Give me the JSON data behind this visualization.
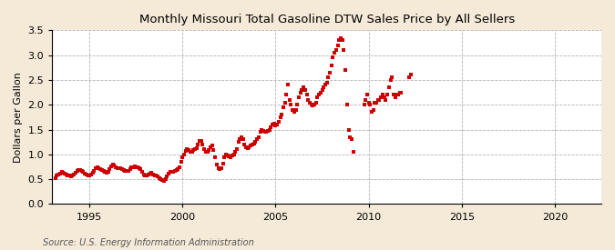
{
  "title": "Monthly Missouri Total Gasoline DTW Sales Price by All Sellers",
  "ylabel": "Dollars per Gallon",
  "source": "Source: U.S. Energy Information Administration",
  "fig_bg_color": "#f5ead8",
  "plot_bg_color": "#ffffff",
  "dot_color": "#cc0000",
  "xlim": [
    1993.0,
    2022.5
  ],
  "ylim": [
    0.0,
    3.5
  ],
  "yticks": [
    0.0,
    0.5,
    1.0,
    1.5,
    2.0,
    2.5,
    3.0,
    3.5
  ],
  "xticks": [
    1995,
    2000,
    2005,
    2010,
    2015,
    2020
  ],
  "data": [
    [
      1993.17,
      0.53
    ],
    [
      1993.25,
      0.57
    ],
    [
      1993.33,
      0.6
    ],
    [
      1993.42,
      0.62
    ],
    [
      1993.5,
      0.65
    ],
    [
      1993.58,
      0.63
    ],
    [
      1993.67,
      0.62
    ],
    [
      1993.75,
      0.6
    ],
    [
      1993.83,
      0.58
    ],
    [
      1993.92,
      0.57
    ],
    [
      1994.0,
      0.55
    ],
    [
      1994.08,
      0.57
    ],
    [
      1994.17,
      0.6
    ],
    [
      1994.25,
      0.63
    ],
    [
      1994.33,
      0.67
    ],
    [
      1994.42,
      0.68
    ],
    [
      1994.5,
      0.68
    ],
    [
      1994.58,
      0.67
    ],
    [
      1994.67,
      0.65
    ],
    [
      1994.75,
      0.62
    ],
    [
      1994.83,
      0.6
    ],
    [
      1994.92,
      0.58
    ],
    [
      1995.0,
      0.57
    ],
    [
      1995.08,
      0.6
    ],
    [
      1995.17,
      0.63
    ],
    [
      1995.25,
      0.67
    ],
    [
      1995.33,
      0.72
    ],
    [
      1995.42,
      0.74
    ],
    [
      1995.5,
      0.73
    ],
    [
      1995.58,
      0.71
    ],
    [
      1995.67,
      0.69
    ],
    [
      1995.75,
      0.67
    ],
    [
      1995.83,
      0.65
    ],
    [
      1995.92,
      0.63
    ],
    [
      1996.0,
      0.65
    ],
    [
      1996.08,
      0.7
    ],
    [
      1996.17,
      0.76
    ],
    [
      1996.25,
      0.8
    ],
    [
      1996.33,
      0.78
    ],
    [
      1996.42,
      0.75
    ],
    [
      1996.5,
      0.73
    ],
    [
      1996.58,
      0.73
    ],
    [
      1996.67,
      0.72
    ],
    [
      1996.75,
      0.7
    ],
    [
      1996.83,
      0.68
    ],
    [
      1996.92,
      0.67
    ],
    [
      1997.0,
      0.66
    ],
    [
      1997.08,
      0.67
    ],
    [
      1997.17,
      0.7
    ],
    [
      1997.25,
      0.74
    ],
    [
      1997.33,
      0.75
    ],
    [
      1997.42,
      0.76
    ],
    [
      1997.5,
      0.75
    ],
    [
      1997.58,
      0.74
    ],
    [
      1997.67,
      0.72
    ],
    [
      1997.75,
      0.7
    ],
    [
      1997.83,
      0.65
    ],
    [
      1997.92,
      0.6
    ],
    [
      1998.0,
      0.57
    ],
    [
      1998.08,
      0.57
    ],
    [
      1998.17,
      0.6
    ],
    [
      1998.25,
      0.62
    ],
    [
      1998.33,
      0.63
    ],
    [
      1998.42,
      0.6
    ],
    [
      1998.5,
      0.58
    ],
    [
      1998.58,
      0.57
    ],
    [
      1998.67,
      0.55
    ],
    [
      1998.75,
      0.53
    ],
    [
      1998.83,
      0.5
    ],
    [
      1998.92,
      0.48
    ],
    [
      1999.0,
      0.47
    ],
    [
      1999.08,
      0.5
    ],
    [
      1999.17,
      0.55
    ],
    [
      1999.25,
      0.62
    ],
    [
      1999.33,
      0.65
    ],
    [
      1999.42,
      0.65
    ],
    [
      1999.5,
      0.65
    ],
    [
      1999.58,
      0.67
    ],
    [
      1999.67,
      0.68
    ],
    [
      1999.75,
      0.7
    ],
    [
      1999.83,
      0.75
    ],
    [
      1999.92,
      0.85
    ],
    [
      2000.0,
      0.95
    ],
    [
      2000.08,
      1.0
    ],
    [
      2000.17,
      1.07
    ],
    [
      2000.25,
      1.1
    ],
    [
      2000.33,
      1.08
    ],
    [
      2000.42,
      1.05
    ],
    [
      2000.5,
      1.05
    ],
    [
      2000.58,
      1.08
    ],
    [
      2000.67,
      1.1
    ],
    [
      2000.75,
      1.12
    ],
    [
      2000.83,
      1.2
    ],
    [
      2000.92,
      1.28
    ],
    [
      2001.0,
      1.28
    ],
    [
      2001.08,
      1.2
    ],
    [
      2001.17,
      1.1
    ],
    [
      2001.25,
      1.05
    ],
    [
      2001.33,
      1.05
    ],
    [
      2001.42,
      1.08
    ],
    [
      2001.5,
      1.15
    ],
    [
      2001.58,
      1.18
    ],
    [
      2001.67,
      1.08
    ],
    [
      2001.75,
      0.95
    ],
    [
      2001.83,
      0.8
    ],
    [
      2001.92,
      0.72
    ],
    [
      2002.0,
      0.7
    ],
    [
      2002.08,
      0.72
    ],
    [
      2002.17,
      0.82
    ],
    [
      2002.25,
      0.95
    ],
    [
      2002.33,
      1.0
    ],
    [
      2002.42,
      0.98
    ],
    [
      2002.5,
      0.96
    ],
    [
      2002.58,
      0.95
    ],
    [
      2002.67,
      0.97
    ],
    [
      2002.75,
      1.0
    ],
    [
      2002.83,
      1.05
    ],
    [
      2002.92,
      1.1
    ],
    [
      2003.0,
      1.25
    ],
    [
      2003.08,
      1.3
    ],
    [
      2003.17,
      1.35
    ],
    [
      2003.25,
      1.3
    ],
    [
      2003.33,
      1.2
    ],
    [
      2003.42,
      1.15
    ],
    [
      2003.5,
      1.12
    ],
    [
      2003.58,
      1.15
    ],
    [
      2003.67,
      1.18
    ],
    [
      2003.75,
      1.2
    ],
    [
      2003.83,
      1.22
    ],
    [
      2003.92,
      1.25
    ],
    [
      2004.0,
      1.3
    ],
    [
      2004.08,
      1.35
    ],
    [
      2004.17,
      1.45
    ],
    [
      2004.25,
      1.5
    ],
    [
      2004.33,
      1.48
    ],
    [
      2004.42,
      1.45
    ],
    [
      2004.5,
      1.45
    ],
    [
      2004.58,
      1.48
    ],
    [
      2004.67,
      1.5
    ],
    [
      2004.75,
      1.55
    ],
    [
      2004.83,
      1.6
    ],
    [
      2004.92,
      1.62
    ],
    [
      2005.0,
      1.58
    ],
    [
      2005.08,
      1.6
    ],
    [
      2005.17,
      1.65
    ],
    [
      2005.25,
      1.75
    ],
    [
      2005.33,
      1.8
    ],
    [
      2005.42,
      1.95
    ],
    [
      2005.5,
      2.05
    ],
    [
      2005.58,
      2.2
    ],
    [
      2005.67,
      2.4
    ],
    [
      2005.75,
      2.1
    ],
    [
      2005.83,
      2.0
    ],
    [
      2005.92,
      1.9
    ],
    [
      2006.0,
      1.85
    ],
    [
      2006.08,
      1.9
    ],
    [
      2006.17,
      2.0
    ],
    [
      2006.25,
      2.15
    ],
    [
      2006.33,
      2.25
    ],
    [
      2006.42,
      2.3
    ],
    [
      2006.5,
      2.35
    ],
    [
      2006.58,
      2.3
    ],
    [
      2006.67,
      2.2
    ],
    [
      2006.75,
      2.1
    ],
    [
      2006.83,
      2.05
    ],
    [
      2006.92,
      2.0
    ],
    [
      2007.0,
      1.98
    ],
    [
      2007.08,
      2.0
    ],
    [
      2007.17,
      2.05
    ],
    [
      2007.25,
      2.15
    ],
    [
      2007.33,
      2.2
    ],
    [
      2007.42,
      2.25
    ],
    [
      2007.5,
      2.3
    ],
    [
      2007.58,
      2.35
    ],
    [
      2007.67,
      2.4
    ],
    [
      2007.75,
      2.45
    ],
    [
      2007.83,
      2.55
    ],
    [
      2007.92,
      2.65
    ],
    [
      2008.0,
      2.8
    ],
    [
      2008.08,
      2.95
    ],
    [
      2008.17,
      3.05
    ],
    [
      2008.25,
      3.1
    ],
    [
      2008.33,
      3.2
    ],
    [
      2008.42,
      3.3
    ],
    [
      2008.5,
      3.35
    ],
    [
      2008.58,
      3.3
    ],
    [
      2008.67,
      3.1
    ],
    [
      2008.75,
      2.7
    ],
    [
      2008.83,
      2.0
    ],
    [
      2008.92,
      1.5
    ],
    [
      2009.0,
      1.35
    ],
    [
      2009.08,
      1.3
    ],
    [
      2009.17,
      1.05
    ],
    [
      2009.75,
      2.0
    ],
    [
      2009.83,
      2.1
    ],
    [
      2009.92,
      2.2
    ],
    [
      2010.0,
      2.05
    ],
    [
      2010.08,
      2.0
    ],
    [
      2010.17,
      1.85
    ],
    [
      2010.25,
      1.9
    ],
    [
      2010.33,
      2.05
    ],
    [
      2010.42,
      2.05
    ],
    [
      2010.5,
      2.1
    ],
    [
      2010.58,
      2.1
    ],
    [
      2010.67,
      2.15
    ],
    [
      2010.75,
      2.2
    ],
    [
      2010.83,
      2.15
    ],
    [
      2010.92,
      2.1
    ],
    [
      2011.0,
      2.2
    ],
    [
      2011.08,
      2.35
    ],
    [
      2011.17,
      2.5
    ],
    [
      2011.25,
      2.55
    ],
    [
      2011.33,
      2.2
    ],
    [
      2011.42,
      2.15
    ],
    [
      2011.5,
      2.2
    ],
    [
      2011.58,
      2.2
    ],
    [
      2011.67,
      2.25
    ],
    [
      2011.75,
      2.25
    ],
    [
      2012.17,
      2.55
    ],
    [
      2012.25,
      2.6
    ]
  ]
}
